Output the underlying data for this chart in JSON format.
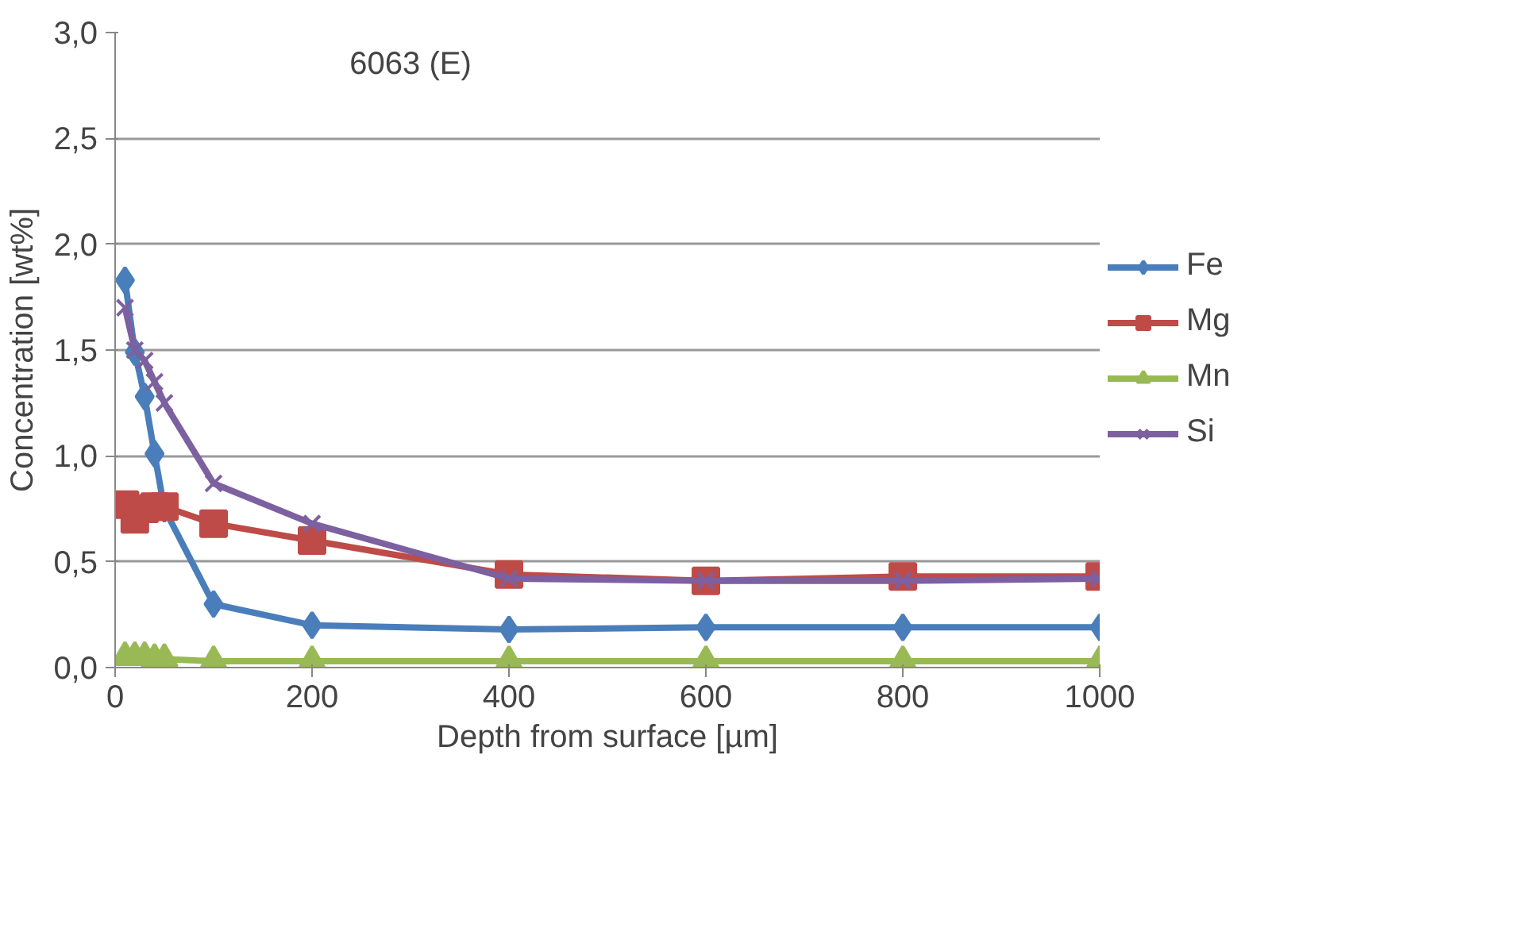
{
  "chart_data": {
    "type": "line",
    "title": "6063 (E)",
    "xlabel": "Depth from surface [µm]",
    "ylabel": "Concentration [wt%]",
    "x": [
      10,
      20,
      30,
      40,
      50,
      100,
      200,
      400,
      600,
      800,
      1000
    ],
    "xlim": [
      0,
      1000
    ],
    "xticks": [
      0,
      200,
      400,
      600,
      800,
      1000
    ],
    "ylim": [
      0,
      3
    ],
    "yticks": [
      {
        "value": 0,
        "label": "0,0"
      },
      {
        "value": 0.5,
        "label": "0,5"
      },
      {
        "value": 1,
        "label": "1,0"
      },
      {
        "value": 1.5,
        "label": "1,5"
      },
      {
        "value": 2,
        "label": "2,0"
      },
      {
        "value": 2.5,
        "label": "2,5"
      },
      {
        "value": 3,
        "label": "3,0"
      }
    ],
    "grid": "y",
    "legend": "right",
    "series": [
      {
        "name": "Fe",
        "color": "#4a7ebb",
        "marker": "diamond",
        "values": [
          1.83,
          1.49,
          1.28,
          1.01,
          0.75,
          0.3,
          0.2,
          0.18,
          0.19,
          0.19,
          0.19
        ]
      },
      {
        "name": "Mg",
        "color": "#be4b48",
        "marker": "square",
        "values": [
          0.77,
          0.7,
          0.75,
          0.76,
          0.76,
          0.68,
          0.6,
          0.44,
          0.41,
          0.43,
          0.43
        ]
      },
      {
        "name": "Mn",
        "color": "#98b954",
        "marker": "triangle",
        "values": [
          0.05,
          0.05,
          0.05,
          0.04,
          0.04,
          0.03,
          0.03,
          0.03,
          0.03,
          0.03,
          0.03
        ]
      },
      {
        "name": "Si",
        "color": "#7d60a0",
        "marker": "cross",
        "values": [
          1.7,
          1.5,
          1.45,
          1.35,
          1.25,
          0.87,
          0.68,
          0.42,
          0.41,
          0.41,
          0.42
        ]
      }
    ]
  }
}
